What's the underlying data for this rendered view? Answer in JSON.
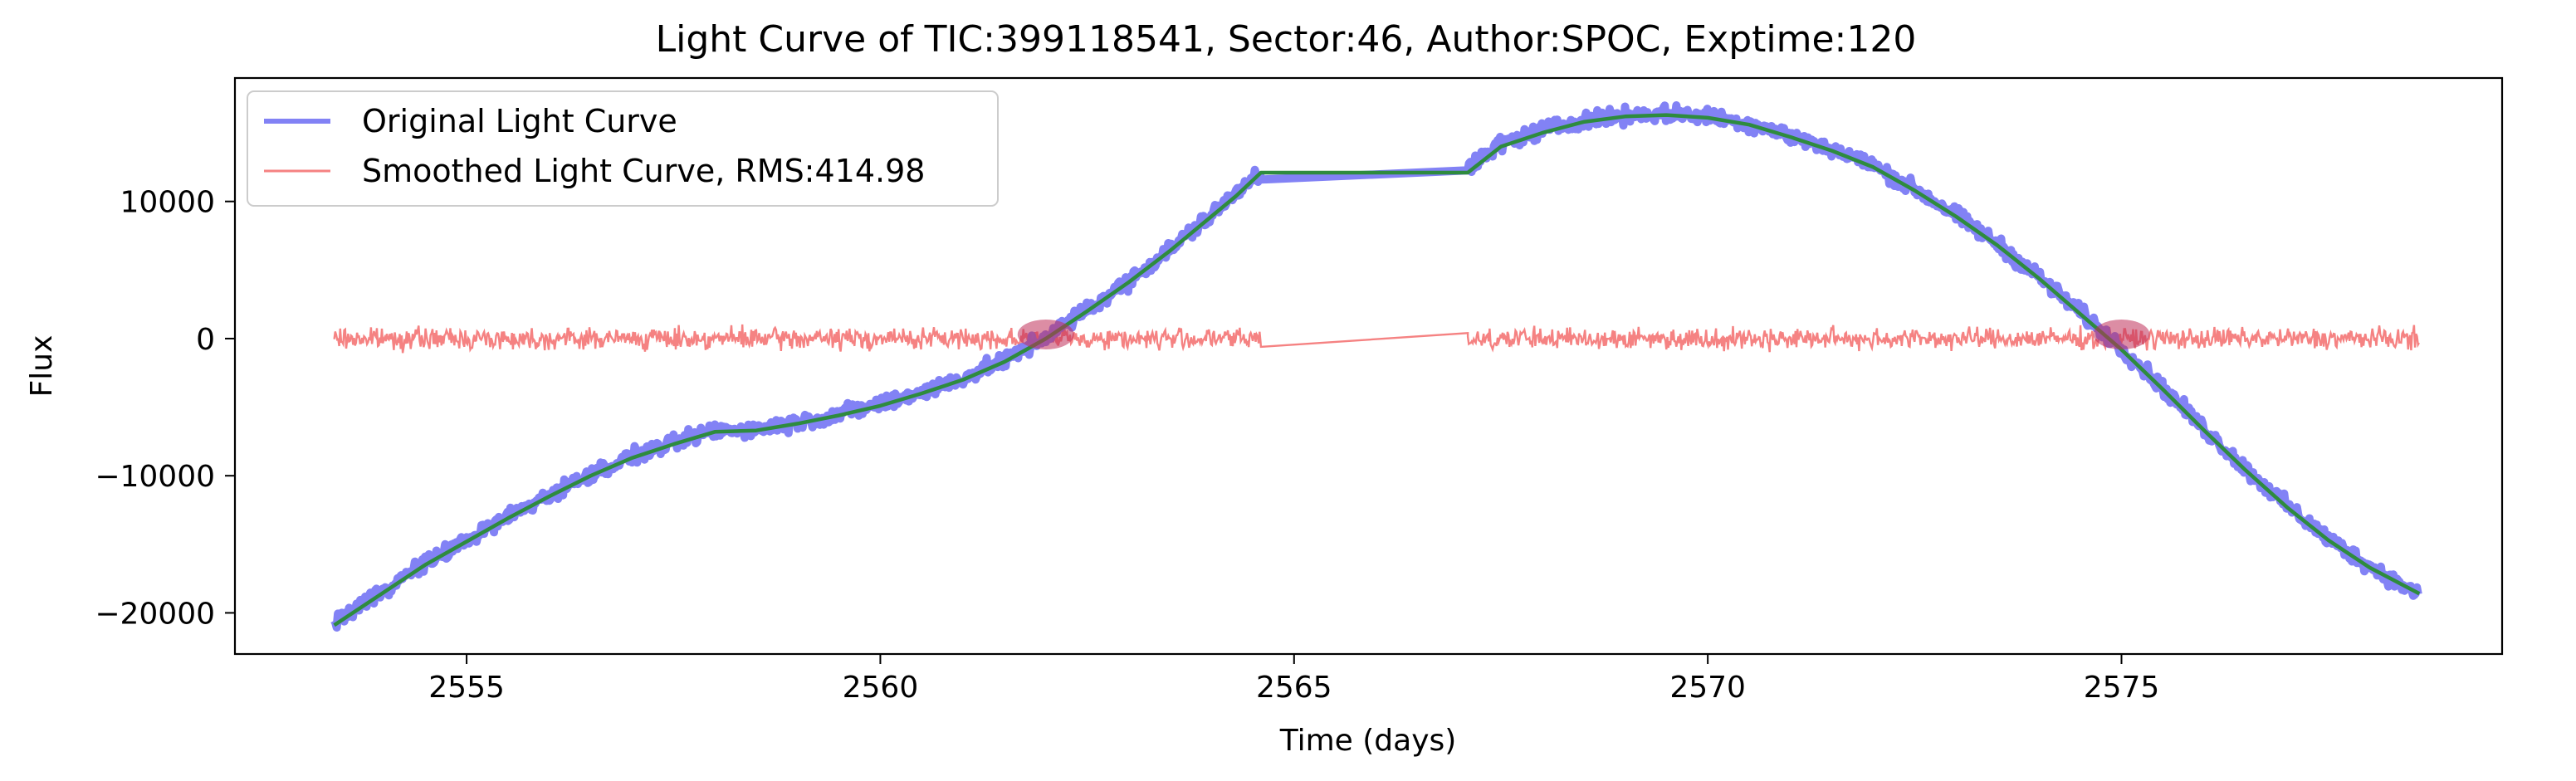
{
  "chart_data": {
    "type": "line",
    "title": "Light Curve of TIC:399118541, Sector:46, Author:SPOC, Exptime:120",
    "xlabel": "Time (days)",
    "ylabel": "Flux",
    "xlim": [
      2552.2,
      2579.6
    ],
    "ylim": [
      -23000,
      19000
    ],
    "xticks": [
      2555,
      2560,
      2565,
      2570,
      2575
    ],
    "xtick_labels": [
      "2555",
      "2560",
      "2565",
      "2570",
      "2575"
    ],
    "yticks": [
      -20000,
      -10000,
      0,
      10000
    ],
    "ytick_labels": [
      "−20000",
      "−10000",
      "0",
      "10000"
    ],
    "grid": false,
    "legend_position": "top-left",
    "series": [
      {
        "name": "Original Light Curve",
        "color": "#7b7bf4",
        "x": [
          2553.4,
          2554.0,
          2554.5,
          2555.0,
          2555.5,
          2556.0,
          2556.5,
          2557.0,
          2557.5,
          2558.0,
          2558.5,
          2559.0,
          2559.5,
          2560.0,
          2560.5,
          2561.0,
          2561.5,
          2562.0,
          2562.5,
          2563.0,
          2563.5,
          2564.0,
          2564.3,
          2564.55,
          2564.6,
          2567.1,
          2567.5,
          2568.0,
          2568.5,
          2569.0,
          2569.5,
          2570.0,
          2570.5,
          2571.0,
          2571.5,
          2572.0,
          2572.5,
          2573.0,
          2573.5,
          2574.0,
          2574.5,
          2575.0,
          2575.5,
          2576.0,
          2576.5,
          2577.0,
          2577.5,
          2578.0,
          2578.6
        ],
        "y": [
          -20700,
          -18300,
          -16400,
          -14700,
          -13000,
          -11400,
          -9900,
          -8600,
          -7600,
          -6700,
          -6600,
          -6100,
          -5500,
          -4800,
          -3900,
          -2900,
          -1600,
          100,
          2100,
          4200,
          6500,
          9000,
          10600,
          12200,
          11600,
          12400,
          14200,
          15200,
          15900,
          16300,
          16400,
          16200,
          15700,
          14800,
          13800,
          12600,
          10900,
          9000,
          6900,
          4500,
          1900,
          -700,
          -3600,
          -6600,
          -9500,
          -12200,
          -14600,
          -16600,
          -18700
        ]
      },
      {
        "name": "Smoothed Light Curve, RMS:414.98",
        "color": "#f47b7b",
        "x": [
          2553.4,
          2564.6,
          2567.1,
          2578.6
        ],
        "y": [
          0,
          0,
          0,
          0
        ],
        "noise_amplitude": 414.98
      },
      {
        "color": "#2e8b3e",
        "x": [
          2553.4,
          2554.0,
          2554.5,
          2555.0,
          2555.5,
          2556.0,
          2556.5,
          2557.0,
          2557.5,
          2558.0,
          2558.5,
          2559.0,
          2559.5,
          2560.0,
          2560.5,
          2561.0,
          2561.5,
          2562.0,
          2562.5,
          2563.0,
          2563.5,
          2564.0,
          2564.3,
          2564.6,
          2567.1,
          2567.5,
          2568.0,
          2568.5,
          2569.0,
          2569.5,
          2570.0,
          2570.5,
          2571.0,
          2571.5,
          2572.0,
          2572.5,
          2573.0,
          2573.5,
          2574.0,
          2574.5,
          2575.0,
          2575.5,
          2576.0,
          2576.5,
          2577.0,
          2577.5,
          2578.0,
          2578.6
        ],
        "y": [
          -20900,
          -18500,
          -16500,
          -14800,
          -13100,
          -11500,
          -10000,
          -8700,
          -7700,
          -6800,
          -6700,
          -6200,
          -5600,
          -4900,
          -4000,
          -3000,
          -1700,
          0,
          2000,
          4100,
          6400,
          8900,
          10400,
          12100,
          12100,
          14000,
          15000,
          15800,
          16200,
          16300,
          16100,
          15600,
          14700,
          13700,
          12500,
          10800,
          8900,
          6800,
          4400,
          1800,
          -800,
          -3700,
          -6700,
          -9600,
          -12300,
          -14700,
          -16700,
          -18600
        ]
      }
    ]
  }
}
